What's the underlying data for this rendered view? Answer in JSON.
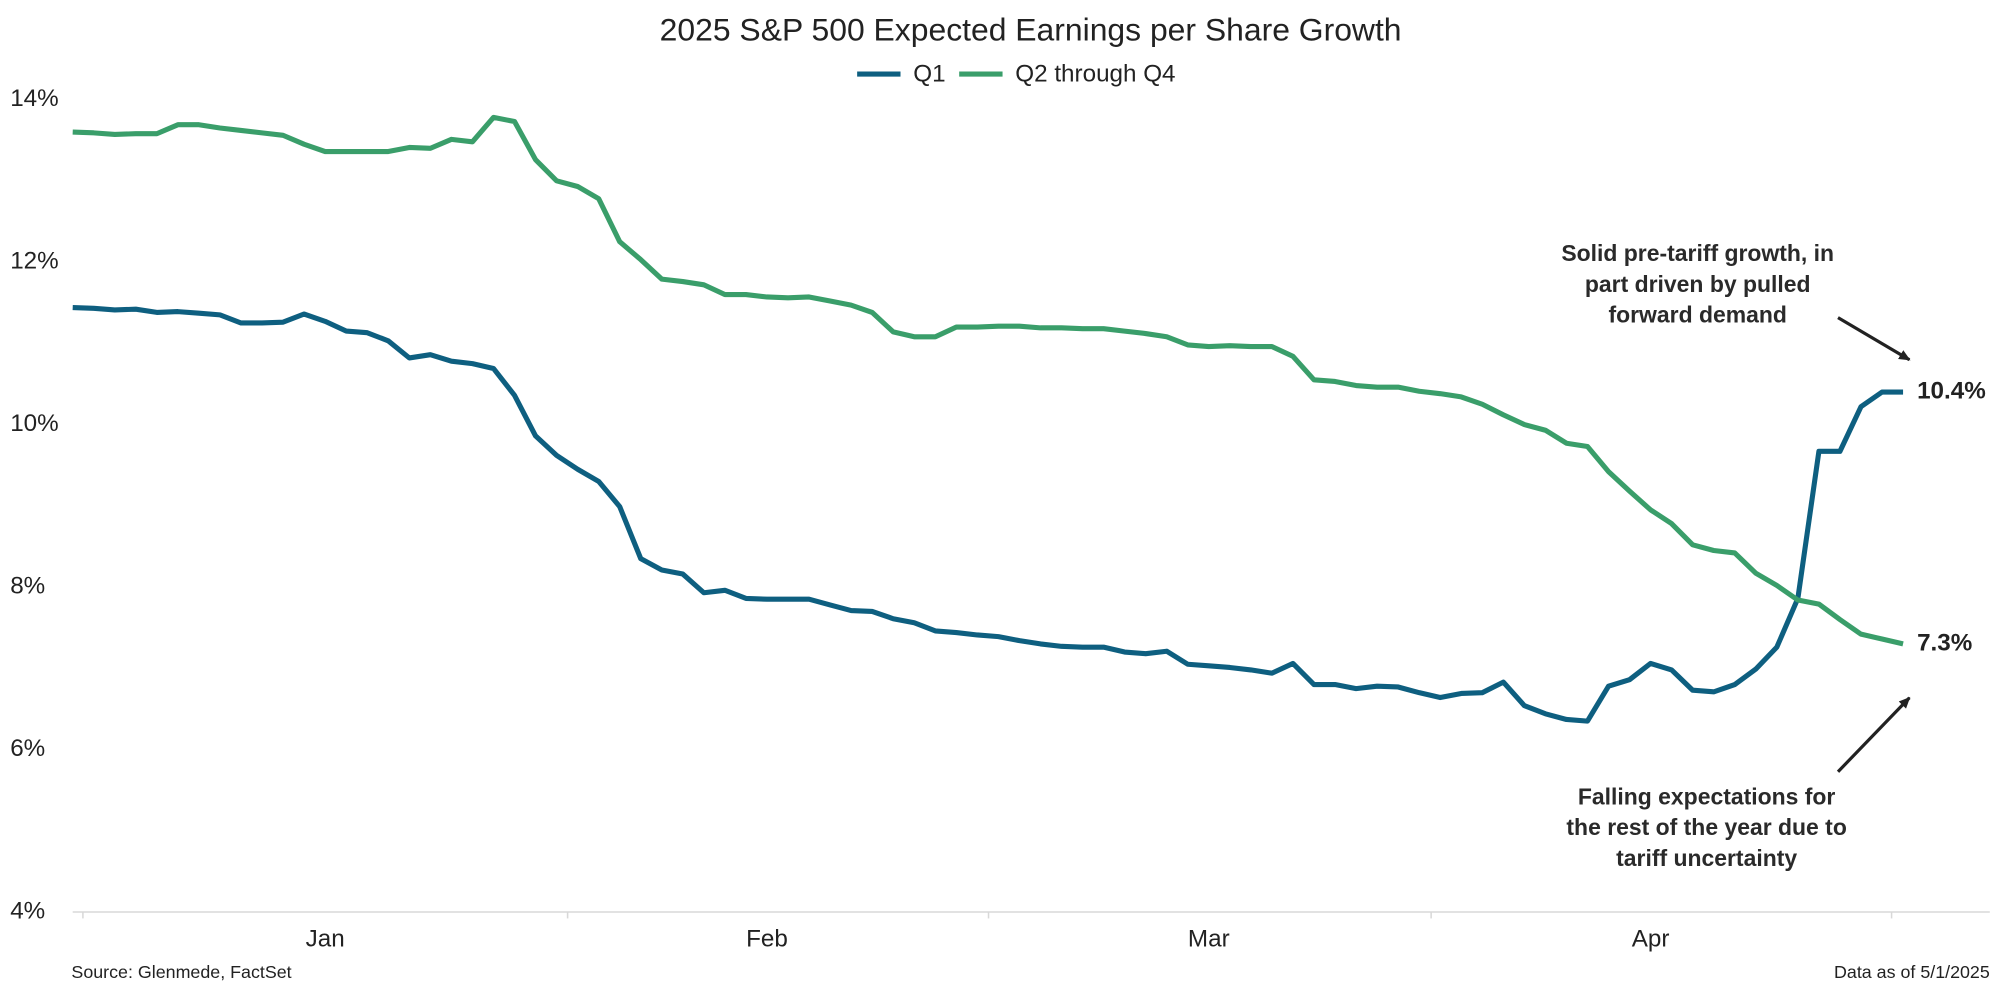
{
  "chart_data": {
    "type": "line",
    "title": "2025 S&P 500 Expected Earnings per Share Growth",
    "categories": [
      null,
      null,
      null,
      null,
      null,
      null,
      null,
      null,
      null,
      null,
      null,
      null,
      "Jan",
      null,
      null,
      null,
      null,
      null,
      null,
      null,
      null,
      null,
      null,
      null,
      null,
      null,
      null,
      null,
      null,
      null,
      null,
      null,
      null,
      "Feb",
      null,
      null,
      null,
      null,
      null,
      null,
      null,
      null,
      null,
      null,
      null,
      null,
      null,
      null,
      null,
      null,
      null,
      null,
      null,
      null,
      "Mar",
      null,
      null,
      null,
      null,
      null,
      null,
      null,
      null,
      null,
      null,
      null,
      null,
      null,
      null,
      null,
      null,
      null,
      null,
      null,
      null,
      "Apr",
      null,
      null,
      null,
      null,
      null,
      null,
      null,
      null,
      null,
      null,
      null,
      null
    ],
    "series": [
      {
        "name": "Q1",
        "color": "#0e5f80",
        "end_label": "10.4%",
        "values": [
          11.44,
          11.43,
          11.41,
          11.42,
          11.38,
          11.39,
          11.37,
          11.35,
          11.25,
          11.25,
          11.26,
          11.36,
          11.27,
          11.15,
          11.13,
          11.03,
          10.82,
          10.86,
          10.78,
          10.75,
          10.69,
          10.36,
          9.86,
          9.62,
          9.45,
          9.3,
          8.99,
          8.35,
          8.21,
          8.16,
          7.93,
          7.96,
          7.86,
          7.85,
          7.85,
          7.85,
          7.78,
          7.71,
          7.7,
          7.61,
          7.56,
          7.46,
          7.44,
          7.41,
          7.39,
          7.34,
          7.3,
          7.27,
          7.26,
          7.26,
          7.2,
          7.18,
          7.21,
          7.05,
          7.03,
          7.01,
          6.98,
          6.94,
          7.06,
          6.8,
          6.8,
          6.75,
          6.78,
          6.77,
          6.7,
          6.64,
          6.69,
          6.7,
          6.83,
          6.54,
          6.44,
          6.37,
          6.35,
          6.78,
          6.86,
          7.06,
          6.98,
          6.73,
          6.71,
          6.8,
          6.99,
          7.26,
          7.86,
          9.67,
          9.67,
          10.22,
          10.4,
          10.4
        ]
      },
      {
        "name": "Q2 through Q4",
        "color": "#3a9e6a",
        "end_label": "7.3%",
        "values": [
          13.6,
          13.59,
          13.57,
          13.58,
          13.58,
          13.69,
          13.69,
          13.65,
          13.62,
          13.59,
          13.56,
          13.45,
          13.36,
          13.36,
          13.36,
          13.36,
          13.41,
          13.4,
          13.51,
          13.48,
          13.78,
          13.73,
          13.26,
          13.0,
          12.93,
          12.78,
          12.25,
          12.03,
          11.79,
          11.76,
          11.72,
          11.6,
          11.6,
          11.57,
          11.56,
          11.57,
          11.52,
          11.47,
          11.38,
          11.14,
          11.08,
          11.08,
          11.2,
          11.2,
          11.21,
          11.21,
          11.19,
          11.19,
          11.18,
          11.18,
          11.15,
          11.12,
          11.08,
          10.98,
          10.96,
          10.97,
          10.96,
          10.96,
          10.84,
          10.55,
          10.53,
          10.48,
          10.46,
          10.46,
          10.41,
          10.38,
          10.34,
          10.25,
          10.12,
          10.0,
          9.93,
          9.77,
          9.73,
          9.42,
          9.18,
          8.95,
          8.78,
          8.52,
          8.45,
          8.42,
          8.17,
          8.02,
          7.84,
          7.79,
          7.6,
          7.42,
          7.36,
          7.3
        ]
      }
    ],
    "ylim": [
      4,
      14
    ],
    "yticks": [
      {
        "value": 4,
        "label": "4%"
      },
      {
        "value": 6,
        "label": "6%"
      },
      {
        "value": 8,
        "label": "8%"
      },
      {
        "value": 10,
        "label": "10%"
      },
      {
        "value": 12,
        "label": "12%"
      },
      {
        "value": 14,
        "label": "14%"
      }
    ],
    "grid": false,
    "legend": "top",
    "annotations": [
      {
        "lines": [
          "Solid pre-tariff growth, in",
          "part driven by pulled",
          "forward demand"
        ]
      },
      {
        "lines": [
          "Falling expectations for",
          "the rest of the year due to",
          "tariff uncertainty"
        ]
      }
    ],
    "source": "Source: Glenmede, FactSet",
    "note": "Data as of 5/1/2025"
  }
}
